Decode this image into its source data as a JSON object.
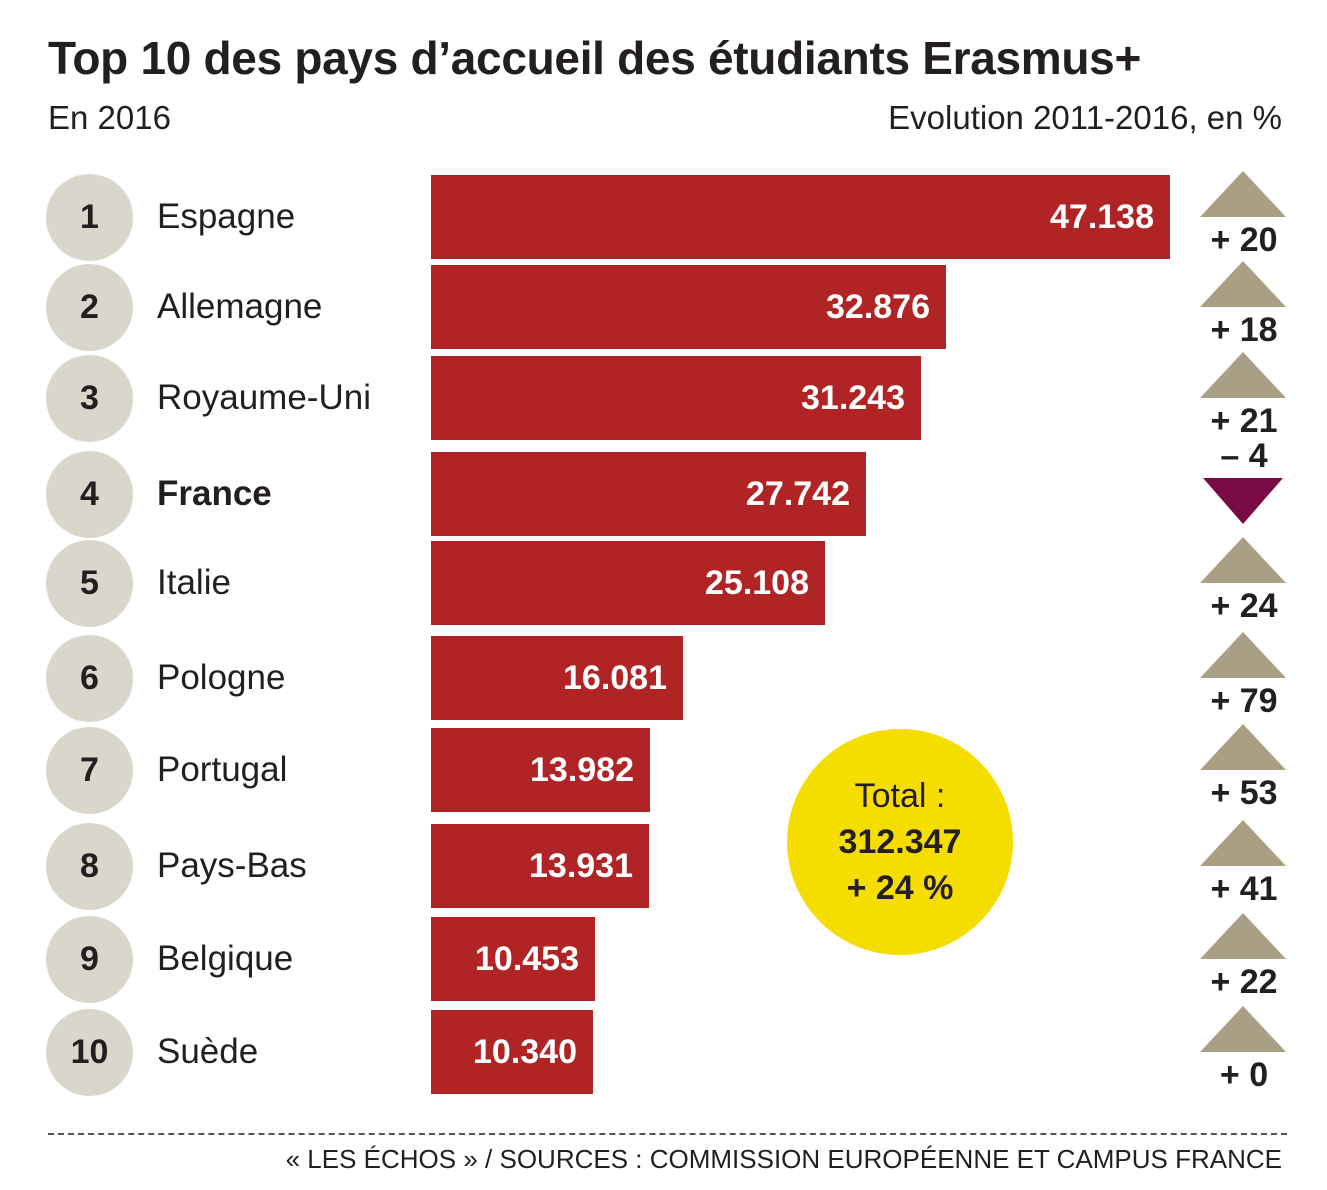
{
  "header": {
    "title": "Top 10 des pays d’accueil des étudiants Erasmus+",
    "subtitle_left": "En 2016",
    "subtitle_right": "Evolution 2011-2016, en %"
  },
  "chart_data": {
    "type": "bar",
    "orientation": "horizontal",
    "ranks": [
      "1",
      "2",
      "3",
      "4",
      "5",
      "6",
      "7",
      "8",
      "9",
      "10"
    ],
    "categories": [
      "Espagne",
      "Allemagne",
      "Royaume-Uni",
      "France",
      "Italie",
      "Pologne",
      "Portugal",
      "Pays-Bas",
      "Belgique",
      "Suède"
    ],
    "values": [
      47138,
      32876,
      31243,
      27742,
      25108,
      16081,
      13982,
      13931,
      10453,
      10340
    ],
    "value_labels": [
      "47.138",
      "32.876",
      "31.243",
      "27.742",
      "25.108",
      "16.081",
      "13.982",
      "13.931",
      "10.453",
      "10.340"
    ],
    "highlight": "France",
    "evolution_pct": [
      20,
      18,
      21,
      -4,
      24,
      79,
      53,
      41,
      22,
      0
    ],
    "evolution_labels": [
      "+ 20",
      "+ 18",
      "+ 21",
      "– 4",
      "+ 24",
      "+ 79",
      "+ 53",
      "+ 41",
      "+ 22",
      "+ 0"
    ],
    "total": {
      "label": "Total :",
      "value": "312.347",
      "change": "+ 24 %"
    }
  },
  "colors": {
    "bar": "#b02425",
    "rank_circle": "#d9d6cb",
    "triangle_up": "#a89f85",
    "triangle_down": "#7a0a45",
    "total_circle": "#f6dd00",
    "text": "#231f20"
  },
  "footer": {
    "source": "« LES ÉCHOS » / SOURCES : COMMISSION EUROPÉENNE ET CAMPUS FRANCE"
  }
}
